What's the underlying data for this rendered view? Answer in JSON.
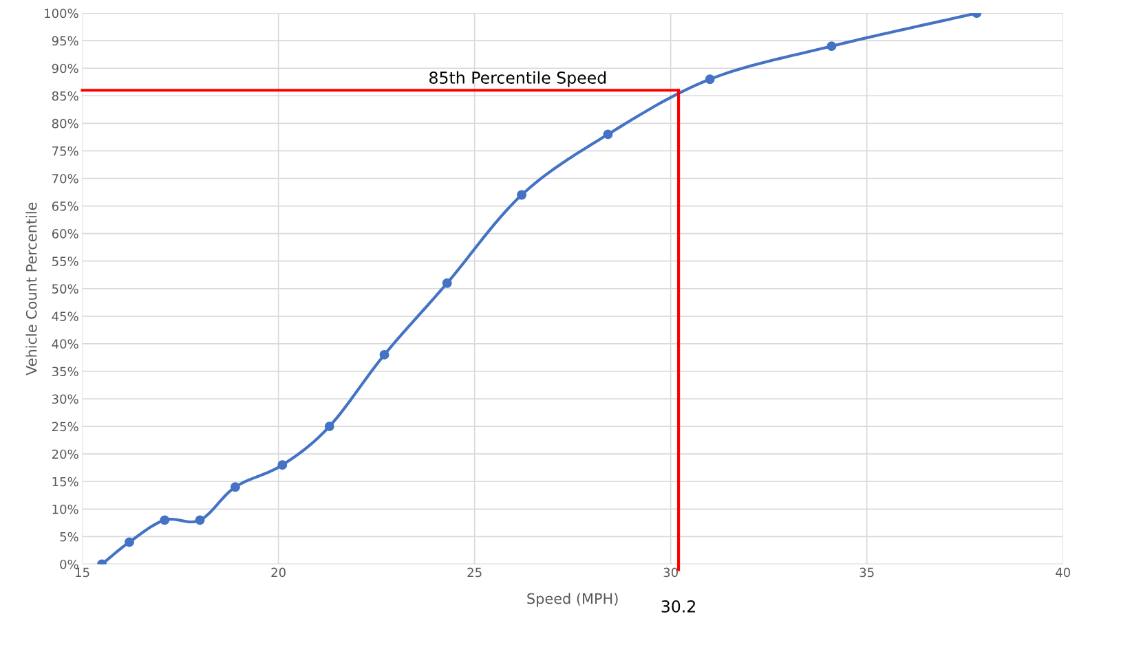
{
  "chart_data": {
    "type": "line",
    "xlabel": "Speed (MPH)",
    "ylabel": "Vehicle Count Percentile",
    "x": [
      15.5,
      16.2,
      17.1,
      18.0,
      18.9,
      20.1,
      21.3,
      22.7,
      24.3,
      26.2,
      28.4,
      31.0,
      34.1,
      37.8
    ],
    "series": [
      {
        "color": "#4472c4",
        "values": [
          0,
          4,
          8,
          8,
          14,
          18,
          25,
          38,
          51,
          67,
          78,
          88,
          94,
          100
        ]
      }
    ],
    "xlim": [
      15,
      40
    ],
    "xticks": [
      15,
      20,
      25,
      30,
      35,
      40
    ],
    "ylim": [
      0,
      100
    ],
    "yticks": [
      {
        "value": 0,
        "label": "0%"
      },
      {
        "value": 5,
        "label": "5%"
      },
      {
        "value": 10,
        "label": "10%"
      },
      {
        "value": 15,
        "label": "15%"
      },
      {
        "value": 20,
        "label": "20%"
      },
      {
        "value": 25,
        "label": "25%"
      },
      {
        "value": 30,
        "label": "30%"
      },
      {
        "value": 35,
        "label": "35%"
      },
      {
        "value": 40,
        "label": "40%"
      },
      {
        "value": 45,
        "label": "45%"
      },
      {
        "value": 50,
        "label": "50%"
      },
      {
        "value": 55,
        "label": "55%"
      },
      {
        "value": 60,
        "label": "60%"
      },
      {
        "value": 65,
        "label": "65%"
      },
      {
        "value": 70,
        "label": "70%"
      },
      {
        "value": 75,
        "label": "75%"
      },
      {
        "value": 80,
        "label": "80%"
      },
      {
        "value": 85,
        "label": "85%"
      },
      {
        "value": 90,
        "label": "90%"
      },
      {
        "value": 95,
        "label": "95%"
      },
      {
        "value": 100,
        "label": "100%"
      }
    ],
    "ref_lines": [
      {
        "axis": "y",
        "value": 86,
        "label": "85th Percentile Speed",
        "color": "#ff0000"
      },
      {
        "axis": "x",
        "value": 30.2,
        "label": "30.2",
        "color": "#ff0000"
      }
    ],
    "grid": true,
    "marker": "circle",
    "line_style": "solid",
    "legend": false
  }
}
